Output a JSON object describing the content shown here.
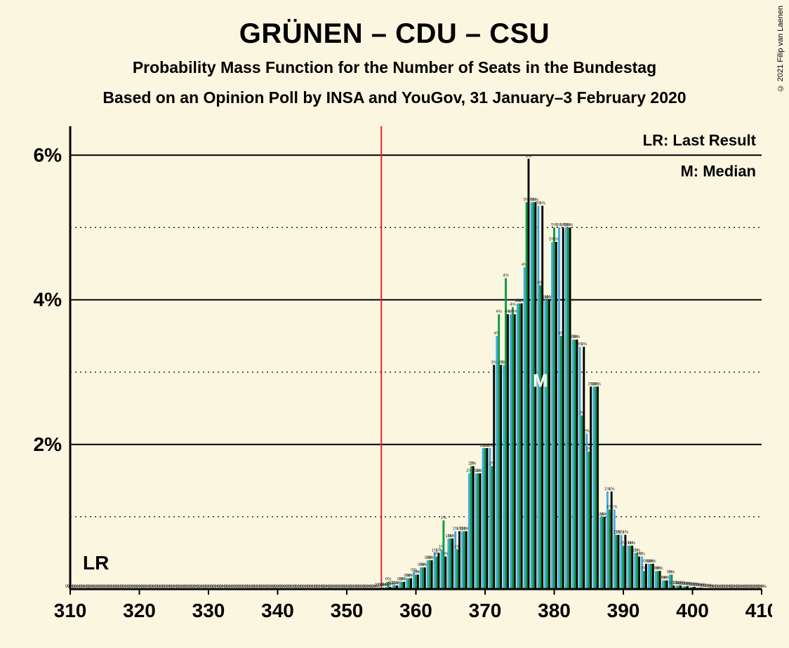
{
  "copyright": "© 2021 Filip van Laenen",
  "title": "GRÜNEN – CDU – CSU",
  "subtitle1": "Probability Mass Function for the Number of Seats in the Bundestag",
  "subtitle2": "Based on an Opinion Poll by INSA and YouGov, 31 January–3 February 2020",
  "legend": {
    "lr": "LR: Last Result",
    "m": "M: Median"
  },
  "lr_text": "LR",
  "m_text": "M",
  "chart": {
    "background": "#fbf6e0",
    "axis_color": "#000000",
    "grid_solid_color": "#000000",
    "grid_dotted_color": "#000000",
    "lr_line_color": "#e8242a",
    "lr_x": 355,
    "median_x": 378,
    "xlim": [
      310,
      410
    ],
    "ylim": [
      0,
      6.4
    ],
    "xtick_step": 10,
    "yticks_major": [
      2,
      4,
      6
    ],
    "yticks_minor": [
      1,
      3,
      5
    ],
    "series_colors": {
      "blue": "#3daae8",
      "green": "#0f9b3e",
      "black": "#000000"
    },
    "seats": [
      310,
      311,
      312,
      313,
      314,
      315,
      316,
      317,
      318,
      319,
      320,
      321,
      322,
      323,
      324,
      325,
      326,
      327,
      328,
      329,
      330,
      331,
      332,
      333,
      334,
      335,
      336,
      337,
      338,
      339,
      340,
      341,
      342,
      343,
      344,
      345,
      346,
      347,
      348,
      349,
      350,
      351,
      352,
      353,
      354,
      355,
      356,
      357,
      358,
      359,
      360,
      361,
      362,
      363,
      364,
      365,
      366,
      367,
      368,
      369,
      370,
      371,
      372,
      373,
      374,
      375,
      376,
      377,
      378,
      379,
      380,
      381,
      382,
      383,
      384,
      385,
      386,
      387,
      388,
      389,
      390,
      391,
      392,
      393,
      394,
      395,
      396,
      397,
      398,
      399,
      400,
      401,
      402,
      403,
      404,
      405,
      406,
      407,
      408,
      409,
      410
    ],
    "blue": [
      0,
      0,
      0,
      0,
      0,
      0,
      0,
      0,
      0,
      0,
      0,
      0,
      0,
      0,
      0,
      0,
      0,
      0,
      0,
      0,
      0,
      0,
      0,
      0,
      0,
      0,
      0,
      0,
      0,
      0,
      0,
      0,
      0,
      0,
      0,
      0,
      0,
      0,
      0,
      0,
      0,
      0,
      0,
      0,
      0,
      0.02,
      0.03,
      0.05,
      0.1,
      0.15,
      0.23,
      0.3,
      0.4,
      0.5,
      0.55,
      0.7,
      0.8,
      0.8,
      1.6,
      1.6,
      1.95,
      1.95,
      3.5,
      3.1,
      3.8,
      3.95,
      4.45,
      5.35,
      5.3,
      4.0,
      4.8,
      5.0,
      5.0,
      3.45,
      3.35,
      2.15,
      2.8,
      1.0,
      1.35,
      1.1,
      0.75,
      0.6,
      0.5,
      0.45,
      0.35,
      0.25,
      0.12,
      0.2,
      0.05,
      0.04,
      0.03,
      0.02,
      0.01,
      0,
      0,
      0,
      0,
      0,
      0,
      0,
      0
    ],
    "green": [
      0,
      0,
      0,
      0,
      0,
      0,
      0,
      0,
      0,
      0,
      0,
      0,
      0,
      0,
      0,
      0,
      0,
      0,
      0,
      0,
      0,
      0,
      0,
      0,
      0,
      0,
      0,
      0,
      0,
      0,
      0,
      0,
      0,
      0,
      0,
      0,
      0,
      0,
      0,
      0,
      0,
      0,
      0,
      0,
      0,
      0.02,
      0.1,
      0.05,
      0.1,
      0.15,
      0.2,
      0.3,
      0.4,
      0.45,
      0.95,
      0.7,
      0.55,
      0.8,
      1.7,
      1.6,
      1.95,
      1.7,
      3.8,
      4.3,
      3.9,
      3.95,
      5.35,
      5.35,
      4.2,
      4.0,
      5.0,
      3.5,
      5.0,
      3.45,
      2.4,
      1.9,
      2.8,
      1.0,
      1.1,
      0.75,
      0.6,
      0.6,
      0.5,
      0.25,
      0.35,
      0.25,
      0.12,
      0.2,
      0.05,
      0.04,
      0.03,
      0.02,
      0.01,
      0,
      0,
      0,
      0,
      0,
      0,
      0,
      0
    ],
    "black": [
      0,
      0,
      0,
      0,
      0,
      0,
      0,
      0,
      0,
      0,
      0,
      0,
      0,
      0,
      0,
      0,
      0,
      0,
      0,
      0,
      0,
      0,
      0,
      0,
      0,
      0,
      0,
      0,
      0,
      0,
      0,
      0,
      0,
      0,
      0,
      0,
      0,
      0,
      0,
      0,
      0,
      0,
      0,
      0,
      0,
      0.02,
      0.03,
      0.05,
      0.1,
      0.15,
      0.2,
      0.3,
      0.4,
      0.5,
      0.45,
      0.7,
      0.8,
      0.8,
      1.7,
      1.6,
      1.95,
      3.1,
      3.1,
      3.8,
      3.8,
      3.95,
      5.95,
      5.35,
      5.3,
      4.0,
      4.8,
      5.0,
      5.0,
      3.45,
      3.35,
      2.8,
      2.8,
      1.0,
      1.35,
      0.75,
      0.75,
      0.6,
      0.45,
      0.35,
      0.35,
      0.25,
      0.12,
      0.05,
      0.05,
      0.04,
      0.03,
      0.02,
      0.01,
      0,
      0,
      0,
      0,
      0,
      0,
      0,
      0
    ]
  }
}
